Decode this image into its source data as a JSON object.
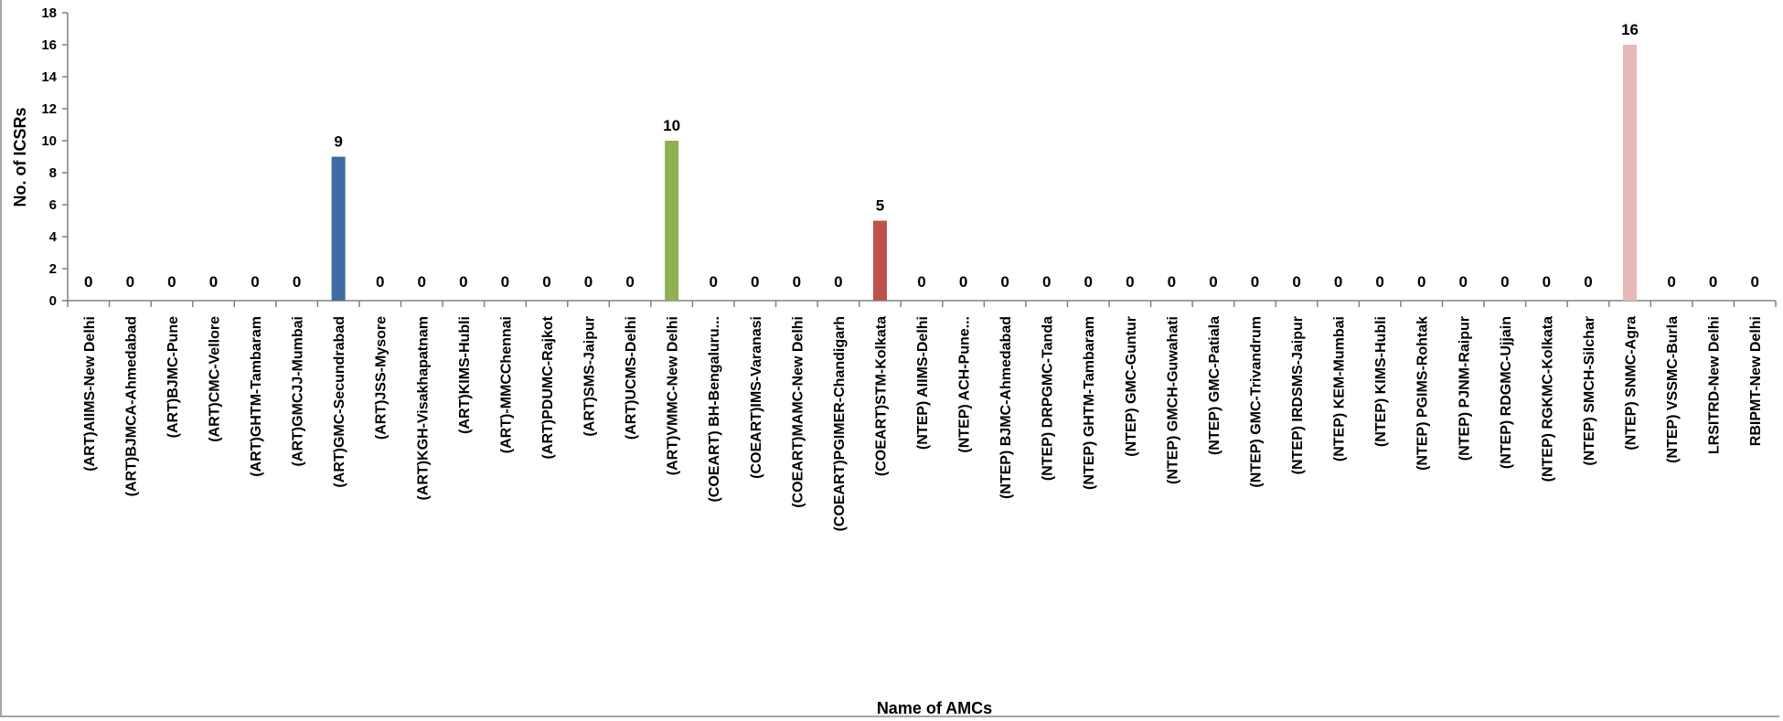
{
  "chart_data": {
    "type": "bar",
    "title": "",
    "xlabel": "Name of AMCs",
    "ylabel": "No. of ICSRs",
    "ylim": [
      0,
      18
    ],
    "yticks": [
      0,
      2,
      4,
      6,
      8,
      10,
      12,
      14,
      16,
      18
    ],
    "grid": false,
    "legend": "none",
    "categories": [
      "(ART)AIIMS-New Delhi",
      "(ART)BJMCA-Ahmedabad",
      "(ART)BJMC-Pune",
      "(ART)CMC-Vellore",
      "(ART)GHTM-Tambaram",
      "(ART)GMCJJ-Mumbai",
      "(ART)GMC-Secundrabad",
      "(ART)JSS-Mysore",
      "(ART)KGH-Visakhapatnam",
      "(ART)KIMS-Hubli",
      "(ART)-MMCChennai",
      "(ART)PDUMC-Rajkot",
      "(ART)SMS-Jaipur",
      "(ART)UCMS-Delhi",
      "(ART)VMMC-New Delhi",
      "(COEART) BH-Bengaluru...",
      "(COEART)IMS-Varanasi",
      "(COEART)MAMC-New Delhi",
      "(COEART)PGIMER-Chandigarh",
      "(COEART)STM-Kolkata",
      "(NTEP) AIIMS-Delhi",
      "(NTEP) ACH-Pune...",
      "(NTEP) BJMC-Ahmedabad",
      "(NTEP) DRPGMC-Tanda",
      "(NTEP) GHTM-Tambaram",
      "(NTEP) GMC-Guntur",
      "(NTEP) GMCH-Guwahati",
      "(NTEP) GMC-Patiala",
      "(NTEP) GMC-Trivandrum",
      "(NTEP) IRDSMS-Jaipur",
      "(NTEP) KEM-Mumbai",
      "(NTEP) KIMS-Hubli",
      "(NTEP) PGIMS-Rohtak",
      "(NTEP) PJNM-Raipur",
      "(NTEP) RDGMC-Ujjain",
      "(NTEP) RGKMC-Kolkata",
      "(NTEP) SMCH-Silchar",
      "(NTEP) SNMC-Agra",
      "(NTEP) VSSMC-Burla",
      "LRSITRD-New Delhi",
      "RBIPMT-New Delhi"
    ],
    "values": [
      0,
      0,
      0,
      0,
      0,
      0,
      9,
      0,
      0,
      0,
      0,
      0,
      0,
      0,
      10,
      0,
      0,
      0,
      0,
      5,
      0,
      0,
      0,
      0,
      0,
      0,
      0,
      0,
      0,
      0,
      0,
      0,
      0,
      0,
      0,
      0,
      0,
      16,
      0,
      0,
      0
    ],
    "data_labels": [
      "0",
      "0",
      "0",
      "0",
      "0",
      "0",
      "9",
      "0",
      "0",
      "0",
      "0",
      "0",
      "0",
      "0",
      "10",
      "0",
      "0",
      "0",
      "0",
      "5",
      "0",
      "0",
      "0",
      "0",
      "0",
      "0",
      "0",
      "0",
      "0",
      "0",
      "0",
      "0",
      "0",
      "0",
      "0",
      "0",
      "0",
      "16",
      "0",
      "0",
      "0"
    ],
    "bar_colors": {
      "default": "#4a7ebb",
      "highlight": [
        "#3f6aa3",
        "#8db153",
        "#c0504d",
        "#e6b9b8"
      ]
    },
    "axis_color": "#808080"
  }
}
